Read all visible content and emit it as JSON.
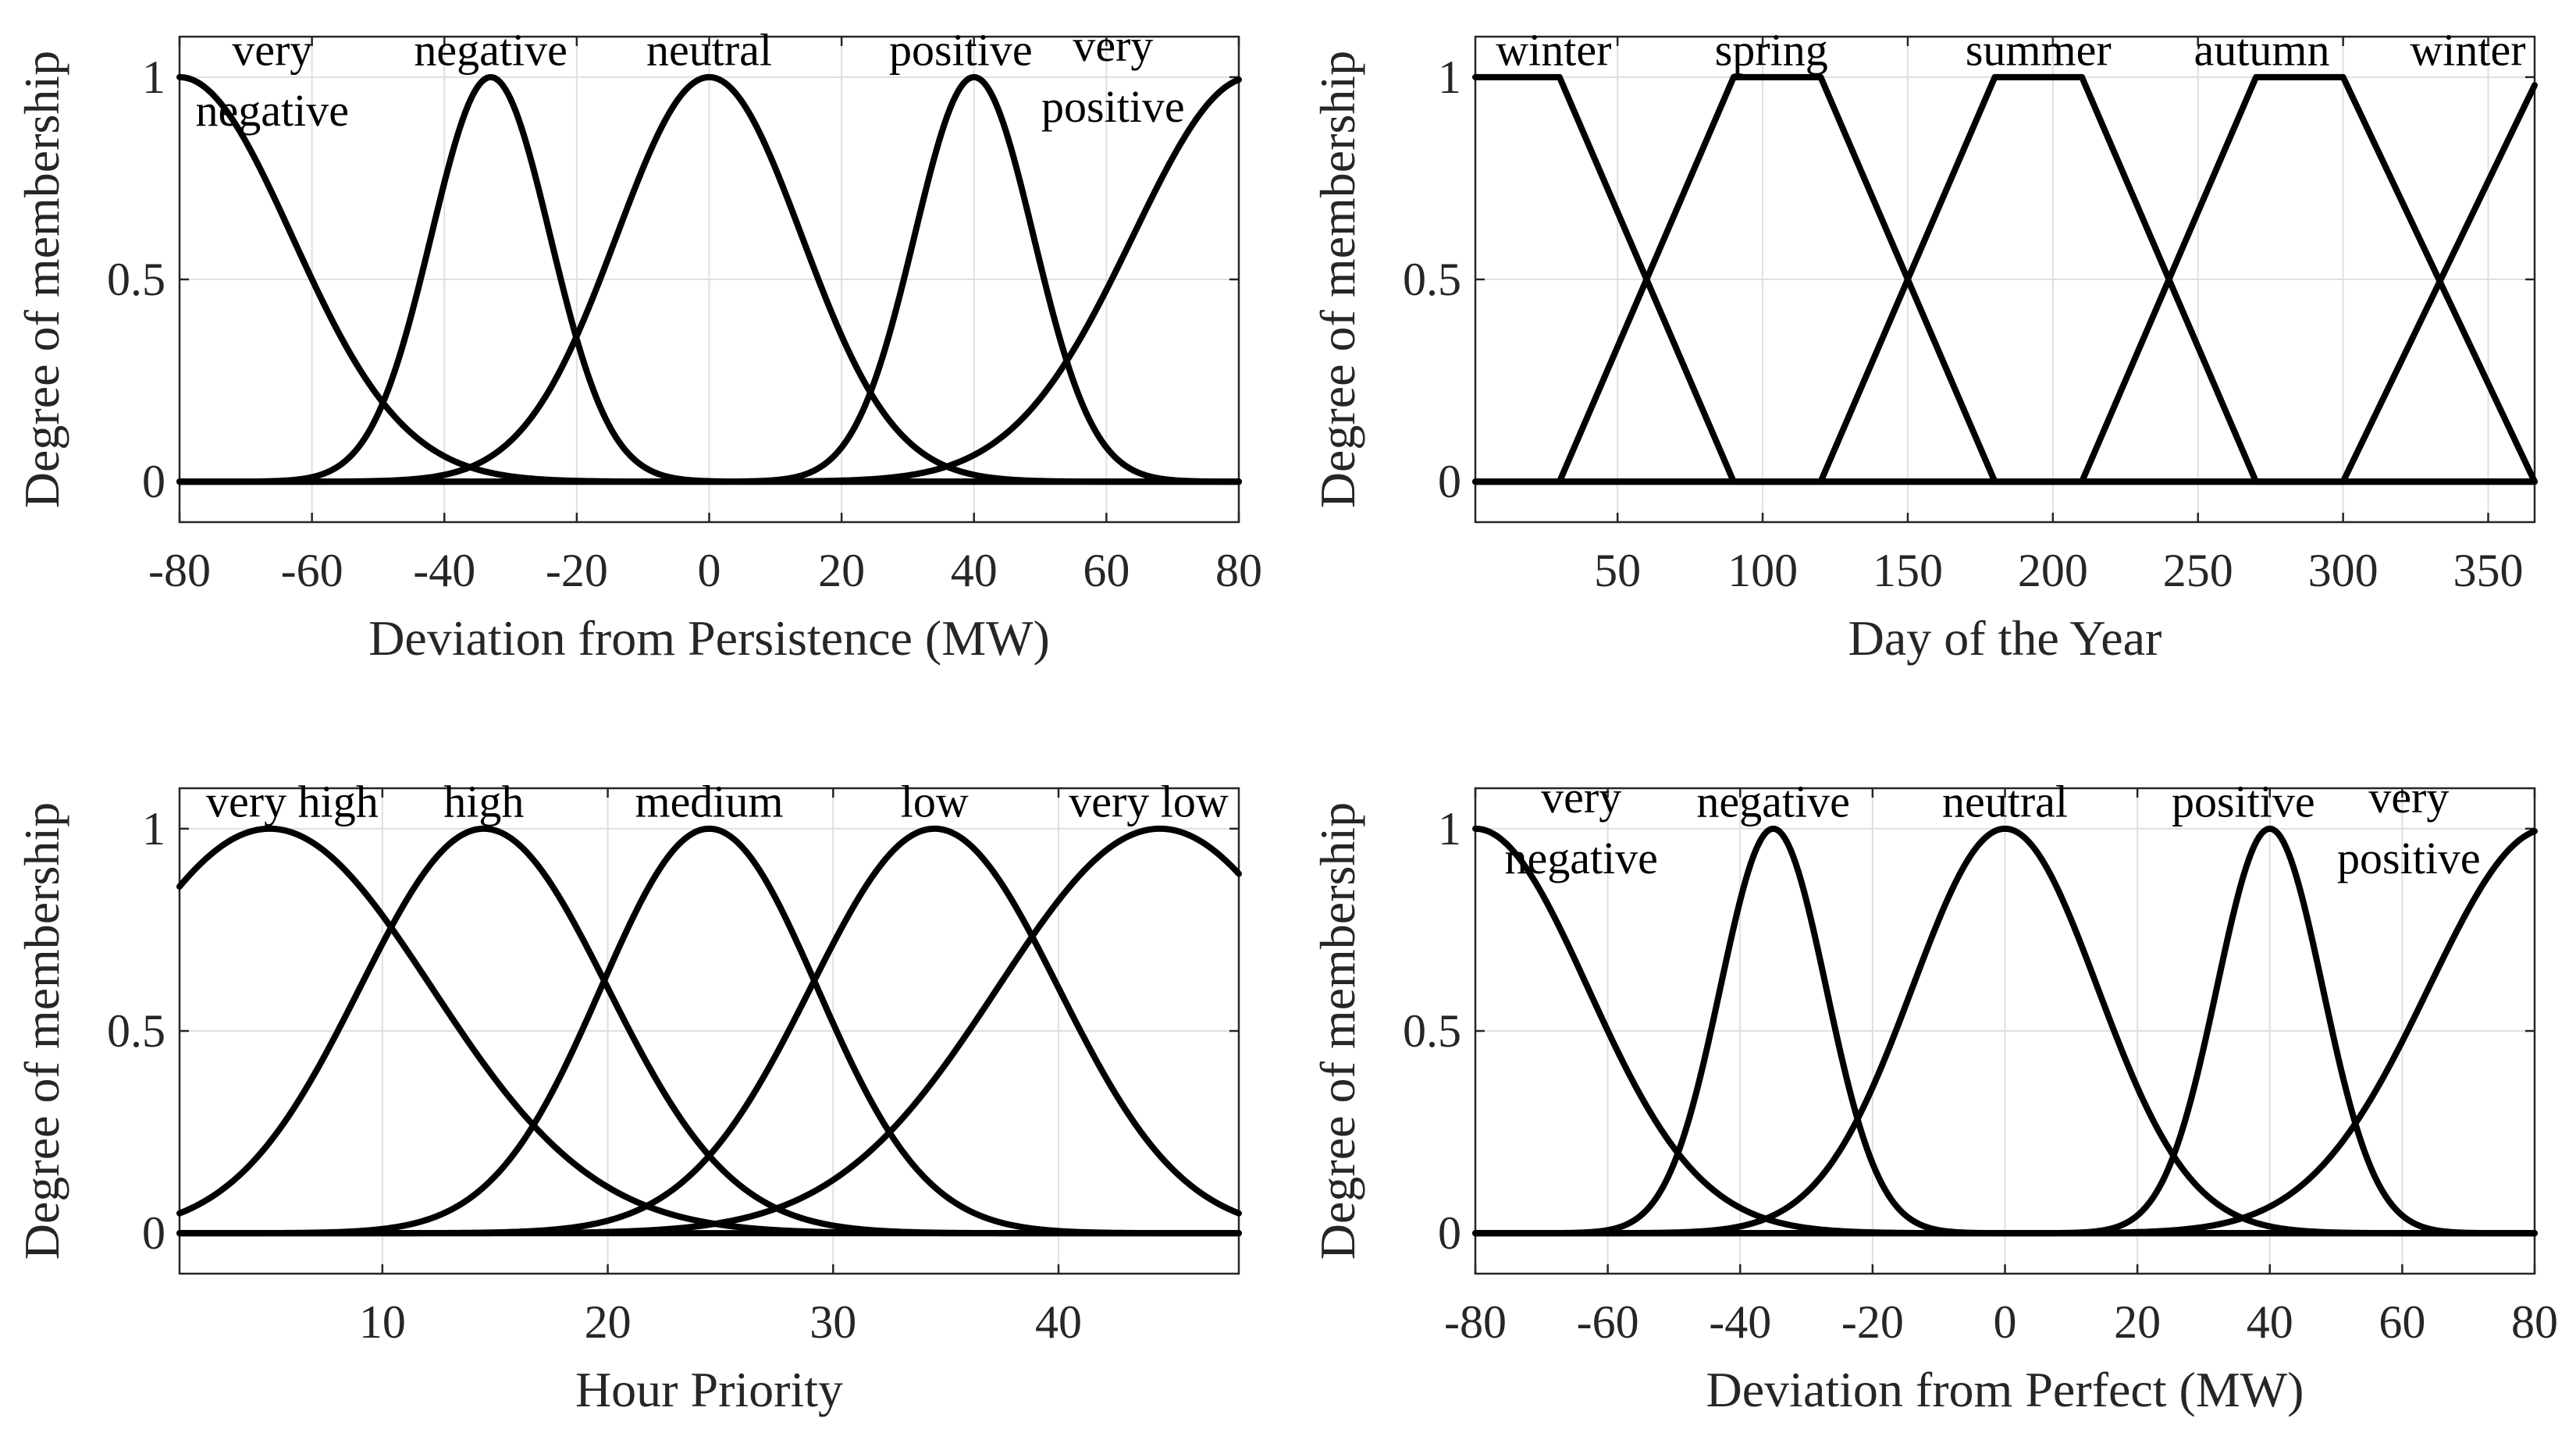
{
  "chart_data": [
    {
      "type": "line",
      "title": "",
      "xlabel": "Deviation from Persistence (MW)",
      "ylabel": "Degree of membership",
      "xlim": [
        -80,
        80
      ],
      "ylim": [
        -0.1,
        1.1
      ],
      "grid": true,
      "xticks": [
        -80,
        -60,
        -40,
        -20,
        0,
        20,
        40,
        60,
        80
      ],
      "xtick_labels": [
        "-80",
        "-60",
        "-40",
        "-20",
        "0",
        "20",
        "40",
        "60",
        "80"
      ],
      "yticks": [
        0,
        0.5,
        1
      ],
      "ytick_labels": [
        "0",
        "0.5",
        "1"
      ],
      "series": [
        {
          "name": "very negative",
          "shape": "gaussian",
          "center": -80,
          "sigma": 17,
          "label_lines": [
            "very",
            "negative"
          ],
          "label_x": -66,
          "label_y": [
            1.03,
            0.88
          ]
        },
        {
          "name": "negative",
          "shape": "gaussian",
          "center": -33,
          "sigma": 9,
          "label_lines": [
            "negative"
          ],
          "label_x": -33,
          "label_y": [
            1.03
          ]
        },
        {
          "name": "neutral",
          "shape": "gaussian",
          "center": 0,
          "sigma": 14,
          "label_lines": [
            "neutral"
          ],
          "label_x": 0,
          "label_y": [
            1.03
          ]
        },
        {
          "name": "positive",
          "shape": "gaussian",
          "center": 40,
          "sigma": 9,
          "label_lines": [
            "positive"
          ],
          "label_x": 38,
          "label_y": [
            1.03
          ]
        },
        {
          "name": "very positive",
          "shape": "gaussian",
          "center": 82,
          "sigma": 18,
          "label_lines": [
            "very",
            "positive"
          ],
          "label_x": 61,
          "label_y": [
            1.04,
            0.89
          ]
        }
      ]
    },
    {
      "type": "line",
      "title": "",
      "xlabel": "Day of the Year",
      "ylabel": "Degree of membership",
      "xlim": [
        1,
        366
      ],
      "ylim": [
        -0.1,
        1.1
      ],
      "grid": true,
      "xticks": [
        50,
        100,
        150,
        200,
        250,
        300,
        350
      ],
      "xtick_labels": [
        "50",
        "100",
        "150",
        "200",
        "250",
        "300",
        "350"
      ],
      "yticks": [
        0,
        0.5,
        1
      ],
      "ytick_labels": [
        "0",
        "0.5",
        "1"
      ],
      "series": [
        {
          "name": "winter",
          "shape": "trapezoid",
          "points": [
            [
              1,
              1
            ],
            [
              30,
              1
            ],
            [
              90,
              0
            ],
            [
              366,
              0
            ]
          ],
          "label_lines": [
            "winter"
          ],
          "label_x": 28,
          "label_y": [
            1.03
          ]
        },
        {
          "name": "spring",
          "shape": "trapezoid",
          "points": [
            [
              1,
              0
            ],
            [
              30,
              0
            ],
            [
              90,
              1
            ],
            [
              120,
              1
            ],
            [
              180,
              0
            ],
            [
              366,
              0
            ]
          ],
          "label_lines": [
            "spring"
          ],
          "label_x": 103,
          "label_y": [
            1.03
          ]
        },
        {
          "name": "summer",
          "shape": "trapezoid",
          "points": [
            [
              1,
              0
            ],
            [
              120,
              0
            ],
            [
              180,
              1
            ],
            [
              210,
              1
            ],
            [
              270,
              0
            ],
            [
              366,
              0
            ]
          ],
          "label_lines": [
            "summer"
          ],
          "label_x": 195,
          "label_y": [
            1.03
          ]
        },
        {
          "name": "autumn",
          "shape": "trapezoid",
          "points": [
            [
              1,
              0
            ],
            [
              210,
              0
            ],
            [
              270,
              1
            ],
            [
              300,
              1
            ],
            [
              366,
              0
            ]
          ],
          "label_lines": [
            "autumn"
          ],
          "label_x": 272,
          "label_y": [
            1.03
          ]
        },
        {
          "name": "winter",
          "shape": "trapezoid",
          "points": [
            [
              1,
              0
            ],
            [
              300,
              0
            ],
            [
              366,
              0.98
            ]
          ],
          "label_lines": [
            "winter"
          ],
          "label_x": 343,
          "label_y": [
            1.03
          ]
        }
      ]
    },
    {
      "type": "line",
      "title": "",
      "xlabel": "Hour Priority",
      "ylabel": "Degree of membership",
      "xlim": [
        1,
        48
      ],
      "ylim": [
        -0.1,
        1.1
      ],
      "grid": true,
      "xticks": [
        10,
        20,
        30,
        40
      ],
      "xtick_labels": [
        "10",
        "20",
        "30",
        "40"
      ],
      "yticks": [
        0,
        0.5,
        1
      ],
      "ytick_labels": [
        "0",
        "0.5",
        "1"
      ],
      "series": [
        {
          "name": "very high",
          "shape": "gaussian",
          "center": 5,
          "sigma": 7.2,
          "label_lines": [
            "very high"
          ],
          "label_x": 6,
          "label_y": [
            1.03
          ]
        },
        {
          "name": "high",
          "shape": "gaussian",
          "center": 14.5,
          "sigma": 5.5,
          "label_lines": [
            "high"
          ],
          "label_x": 14.5,
          "label_y": [
            1.03
          ]
        },
        {
          "name": "medium",
          "shape": "gaussian",
          "center": 24.5,
          "sigma": 4.8,
          "label_lines": [
            "medium"
          ],
          "label_x": 24.5,
          "label_y": [
            1.03
          ]
        },
        {
          "name": "low",
          "shape": "gaussian",
          "center": 34.5,
          "sigma": 5.5,
          "label_lines": [
            "low"
          ],
          "label_x": 34.5,
          "label_y": [
            1.03
          ]
        },
        {
          "name": "very low",
          "shape": "gaussian",
          "center": 44.5,
          "sigma": 7.2,
          "label_lines": [
            "very low"
          ],
          "label_x": 44,
          "label_y": [
            1.03
          ]
        }
      ]
    },
    {
      "type": "line",
      "title": "",
      "xlabel": "Deviation from Perfect (MW)",
      "ylabel": "Degree of membership",
      "xlim": [
        -80,
        80
      ],
      "ylim": [
        -0.1,
        1.1
      ],
      "grid": true,
      "xticks": [
        -80,
        -60,
        -40,
        -20,
        0,
        20,
        40,
        60,
        80
      ],
      "xtick_labels": [
        "-80",
        "-60",
        "-40",
        "-20",
        "0",
        "20",
        "40",
        "60",
        "80"
      ],
      "yticks": [
        0,
        0.5,
        1
      ],
      "ytick_labels": [
        "0",
        "0.5",
        "1"
      ],
      "series": [
        {
          "name": "very negative",
          "shape": "gaussian",
          "center": -80,
          "sigma": 17,
          "label_lines": [
            "very",
            "negative"
          ],
          "label_x": -64,
          "label_y": [
            1.04,
            0.89
          ]
        },
        {
          "name": "negative",
          "shape": "gaussian",
          "center": -35,
          "sigma": 8,
          "label_lines": [
            "negative"
          ],
          "label_x": -35,
          "label_y": [
            1.03
          ]
        },
        {
          "name": "neutral",
          "shape": "gaussian",
          "center": 0,
          "sigma": 14,
          "label_lines": [
            "neutral"
          ],
          "label_x": 0,
          "label_y": [
            1.03
          ]
        },
        {
          "name": "positive",
          "shape": "gaussian",
          "center": 40,
          "sigma": 8,
          "label_lines": [
            "positive"
          ],
          "label_x": 36,
          "label_y": [
            1.03
          ]
        },
        {
          "name": "very positive",
          "shape": "gaussian",
          "center": 82,
          "sigma": 18,
          "label_lines": [
            "very",
            "positive"
          ],
          "label_x": 61,
          "label_y": [
            1.04,
            0.89
          ]
        }
      ]
    }
  ]
}
